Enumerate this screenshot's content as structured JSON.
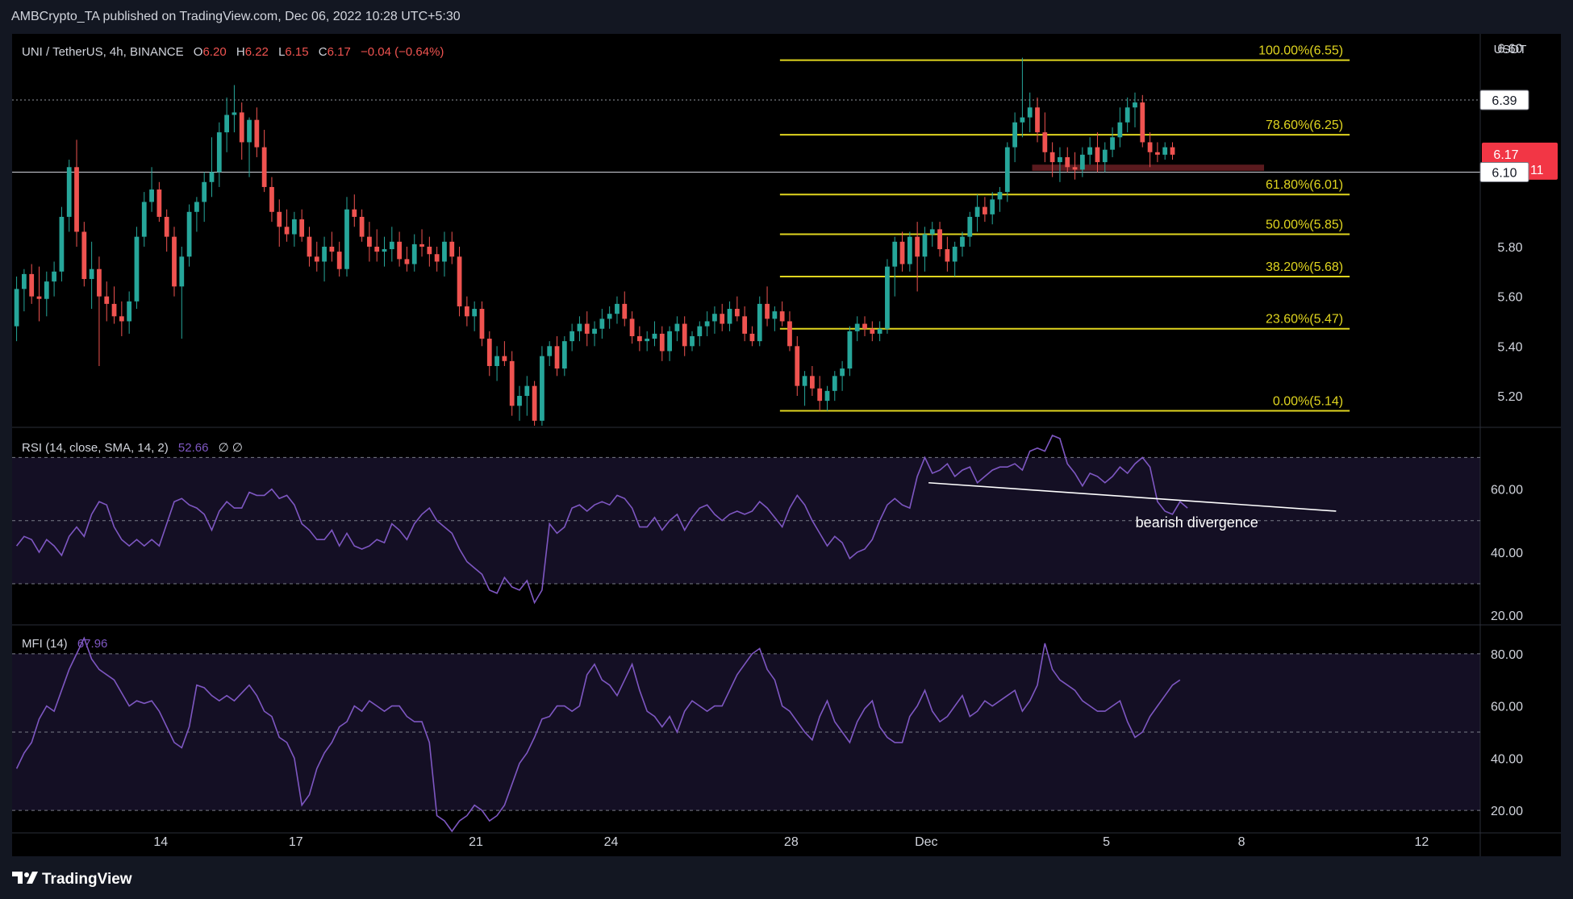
{
  "header": {
    "publisher": "AMBCrypto_TA published on TradingView.com, Dec 06, 2022 10:28 UTC+5:30"
  },
  "footer": {
    "brand": "TradingView"
  },
  "colors": {
    "up": "#26a69a",
    "down": "#ef5350",
    "fib": "#e0d51f",
    "rsi": "#7e57c2",
    "mfi": "#7e57c2",
    "text": "#d1d4dc",
    "bg": "#000000"
  },
  "chart_data": {
    "type": "candlestick",
    "symbol_line": {
      "symbol": "UNI / TetherUS, 4h, BINANCE",
      "o_label": "O",
      "o": "6.20",
      "h_label": "H",
      "h": "6.22",
      "l_label": "L",
      "l": "6.15",
      "c_label": "C",
      "c": "6.17",
      "change": "−0.04 (−0.64%)"
    },
    "y_axis": {
      "unit": "USDT",
      "ticks": [
        5.2,
        5.4,
        5.6,
        5.8,
        6.6
      ],
      "tick_labels": [
        "5.20",
        "5.40",
        "5.60",
        "5.80",
        "6.60"
      ],
      "ylim": [
        5.08,
        6.63
      ]
    },
    "x_axis": {
      "ticks": [
        {
          "label": "14",
          "day": 14
        },
        {
          "label": "17",
          "day": 17
        },
        {
          "label": "21",
          "day": 21
        },
        {
          "label": "24",
          "day": 24
        },
        {
          "label": "28",
          "day": 28
        },
        {
          "label": "Dec",
          "day": 31
        },
        {
          "label": "5",
          "day": 35
        },
        {
          "label": "8",
          "day": 38
        },
        {
          "label": "12",
          "day": 42
        }
      ],
      "xlim": [
        10.7,
        43.3
      ]
    },
    "price_badges": [
      {
        "label": "6.39",
        "value": 6.39,
        "style": "light"
      },
      {
        "label": "6.17",
        "value": 6.17,
        "sub": "03:01:11",
        "style": "red"
      },
      {
        "label": "6.10",
        "value": 6.1,
        "style": "light"
      }
    ],
    "horizontal_lines": [
      {
        "value": 6.39,
        "style": "dotted"
      },
      {
        "value": 6.1,
        "style": "solid"
      }
    ],
    "fibonacci": {
      "start_day": 27.75,
      "end_day": 40.4,
      "levels": [
        {
          "label": "100.00%(6.55)",
          "value": 6.55
        },
        {
          "label": "78.60%(6.25)",
          "value": 6.25
        },
        {
          "label": "61.80%(6.01)",
          "value": 6.01
        },
        {
          "label": "50.00%(5.85)",
          "value": 5.85
        },
        {
          "label": "38.20%(5.68)",
          "value": 5.68
        },
        {
          "label": "23.60%(5.47)",
          "value": 5.47
        },
        {
          "label": "0.00%(5.14)",
          "value": 5.14
        }
      ]
    },
    "zones": [
      {
        "from_day": 33.35,
        "to_day": 38.5,
        "low": 6.105,
        "high": 6.13,
        "color": "#5a1a1e"
      }
    ],
    "candles": [
      [
        5.48,
        5.68,
        5.42,
        5.63
      ],
      [
        5.63,
        5.71,
        5.54,
        5.69
      ],
      [
        5.69,
        5.73,
        5.57,
        5.6
      ],
      [
        5.6,
        5.72,
        5.5,
        5.59
      ],
      [
        5.59,
        5.7,
        5.52,
        5.66
      ],
      [
        5.66,
        5.74,
        5.6,
        5.7
      ],
      [
        5.7,
        5.96,
        5.66,
        5.92
      ],
      [
        5.92,
        6.15,
        5.86,
        6.12
      ],
      [
        6.12,
        6.23,
        5.8,
        5.86
      ],
      [
        5.86,
        5.9,
        5.64,
        5.67
      ],
      [
        5.67,
        5.82,
        5.55,
        5.71
      ],
      [
        5.71,
        5.76,
        5.32,
        5.6
      ],
      [
        5.6,
        5.66,
        5.5,
        5.57
      ],
      [
        5.57,
        5.64,
        5.49,
        5.52
      ],
      [
        5.52,
        5.58,
        5.44,
        5.5
      ],
      [
        5.5,
        5.62,
        5.45,
        5.58
      ],
      [
        5.58,
        5.88,
        5.55,
        5.84
      ],
      [
        5.84,
        6.02,
        5.8,
        5.98
      ],
      [
        5.98,
        6.12,
        5.94,
        6.03
      ],
      [
        6.03,
        6.06,
        5.9,
        5.92
      ],
      [
        5.92,
        5.95,
        5.78,
        5.84
      ],
      [
        5.84,
        5.88,
        5.6,
        5.64
      ],
      [
        5.64,
        5.8,
        5.43,
        5.76
      ],
      [
        5.76,
        5.97,
        5.72,
        5.94
      ],
      [
        5.94,
        6.0,
        5.86,
        5.98
      ],
      [
        5.98,
        6.1,
        5.9,
        6.06
      ],
      [
        6.06,
        6.24,
        6.0,
        6.1
      ],
      [
        6.1,
        6.3,
        6.04,
        6.26
      ],
      [
        6.26,
        6.4,
        6.18,
        6.33
      ],
      [
        6.33,
        6.45,
        6.26,
        6.34
      ],
      [
        6.34,
        6.38,
        6.15,
        6.22
      ],
      [
        6.22,
        6.32,
        6.08,
        6.31
      ],
      [
        6.31,
        6.36,
        6.16,
        6.2
      ],
      [
        6.2,
        6.27,
        6.02,
        6.04
      ],
      [
        6.04,
        6.08,
        5.9,
        5.94
      ],
      [
        5.94,
        5.99,
        5.8,
        5.88
      ],
      [
        5.88,
        5.95,
        5.82,
        5.85
      ],
      [
        5.85,
        5.94,
        5.8,
        5.91
      ],
      [
        5.91,
        5.95,
        5.82,
        5.84
      ],
      [
        5.84,
        5.88,
        5.72,
        5.76
      ],
      [
        5.76,
        5.82,
        5.7,
        5.74
      ],
      [
        5.74,
        5.84,
        5.66,
        5.8
      ],
      [
        5.8,
        5.86,
        5.74,
        5.78
      ],
      [
        5.78,
        5.82,
        5.68,
        5.71
      ],
      [
        5.71,
        6.0,
        5.68,
        5.95
      ],
      [
        5.95,
        6.01,
        5.88,
        5.92
      ],
      [
        5.92,
        5.95,
        5.82,
        5.84
      ],
      [
        5.84,
        5.9,
        5.74,
        5.8
      ],
      [
        5.8,
        5.87,
        5.74,
        5.78
      ],
      [
        5.78,
        5.84,
        5.72,
        5.79
      ],
      [
        5.79,
        5.88,
        5.74,
        5.82
      ],
      [
        5.82,
        5.86,
        5.72,
        5.75
      ],
      [
        5.75,
        5.8,
        5.7,
        5.73
      ],
      [
        5.73,
        5.85,
        5.7,
        5.81
      ],
      [
        5.81,
        5.87,
        5.76,
        5.8
      ],
      [
        5.8,
        5.84,
        5.72,
        5.77
      ],
      [
        5.77,
        5.8,
        5.7,
        5.74
      ],
      [
        5.74,
        5.86,
        5.68,
        5.82
      ],
      [
        5.82,
        5.86,
        5.73,
        5.76
      ],
      [
        5.76,
        5.8,
        5.52,
        5.56
      ],
      [
        5.56,
        5.6,
        5.48,
        5.52
      ],
      [
        5.52,
        5.58,
        5.46,
        5.55
      ],
      [
        5.55,
        5.58,
        5.4,
        5.43
      ],
      [
        5.43,
        5.46,
        5.28,
        5.32
      ],
      [
        5.32,
        5.4,
        5.26,
        5.36
      ],
      [
        5.36,
        5.42,
        5.32,
        5.34
      ],
      [
        5.34,
        5.38,
        5.12,
        5.16
      ],
      [
        5.16,
        5.24,
        5.1,
        5.2
      ],
      [
        5.2,
        5.28,
        5.12,
        5.24
      ],
      [
        5.24,
        5.26,
        5.08,
        5.1
      ],
      [
        5.1,
        5.4,
        5.08,
        5.36
      ],
      [
        5.36,
        5.42,
        5.32,
        5.4
      ],
      [
        5.4,
        5.44,
        5.28,
        5.31
      ],
      [
        5.31,
        5.44,
        5.28,
        5.42
      ],
      [
        5.42,
        5.49,
        5.38,
        5.46
      ],
      [
        5.46,
        5.52,
        5.42,
        5.49
      ],
      [
        5.49,
        5.54,
        5.4,
        5.45
      ],
      [
        5.45,
        5.5,
        5.4,
        5.47
      ],
      [
        5.47,
        5.55,
        5.43,
        5.51
      ],
      [
        5.51,
        5.56,
        5.47,
        5.53
      ],
      [
        5.53,
        5.6,
        5.49,
        5.57
      ],
      [
        5.57,
        5.62,
        5.48,
        5.51
      ],
      [
        5.51,
        5.54,
        5.41,
        5.44
      ],
      [
        5.44,
        5.48,
        5.38,
        5.42
      ],
      [
        5.42,
        5.46,
        5.38,
        5.43
      ],
      [
        5.43,
        5.5,
        5.4,
        5.45
      ],
      [
        5.45,
        5.48,
        5.34,
        5.38
      ],
      [
        5.38,
        5.48,
        5.34,
        5.46
      ],
      [
        5.46,
        5.52,
        5.42,
        5.49
      ],
      [
        5.49,
        5.52,
        5.36,
        5.4
      ],
      [
        5.4,
        5.46,
        5.38,
        5.44
      ],
      [
        5.44,
        5.5,
        5.4,
        5.48
      ],
      [
        5.48,
        5.54,
        5.44,
        5.5
      ],
      [
        5.5,
        5.56,
        5.45,
        5.53
      ],
      [
        5.53,
        5.57,
        5.46,
        5.49
      ],
      [
        5.49,
        5.58,
        5.46,
        5.55
      ],
      [
        5.55,
        5.6,
        5.5,
        5.52
      ],
      [
        5.52,
        5.56,
        5.42,
        5.45
      ],
      [
        5.45,
        5.48,
        5.4,
        5.42
      ],
      [
        5.42,
        5.6,
        5.4,
        5.57
      ],
      [
        5.57,
        5.64,
        5.48,
        5.51
      ],
      [
        5.51,
        5.56,
        5.46,
        5.54
      ],
      [
        5.54,
        5.58,
        5.48,
        5.5
      ],
      [
        5.5,
        5.54,
        5.38,
        5.4
      ],
      [
        5.4,
        5.44,
        5.2,
        5.24
      ],
      [
        5.24,
        5.3,
        5.16,
        5.28
      ],
      [
        5.28,
        5.32,
        5.2,
        5.23
      ],
      [
        5.23,
        5.28,
        5.14,
        5.18
      ],
      [
        5.18,
        5.24,
        5.14,
        5.22
      ],
      [
        5.22,
        5.3,
        5.18,
        5.28
      ],
      [
        5.28,
        5.34,
        5.22,
        5.31
      ],
      [
        5.31,
        5.48,
        5.28,
        5.46
      ],
      [
        5.46,
        5.52,
        5.42,
        5.49
      ],
      [
        5.49,
        5.52,
        5.44,
        5.47
      ],
      [
        5.47,
        5.5,
        5.42,
        5.45
      ],
      [
        5.45,
        5.5,
        5.42,
        5.47
      ],
      [
        5.47,
        5.75,
        5.45,
        5.72
      ],
      [
        5.72,
        5.84,
        5.6,
        5.82
      ],
      [
        5.82,
        5.86,
        5.7,
        5.73
      ],
      [
        5.73,
        5.86,
        5.7,
        5.84
      ],
      [
        5.84,
        5.9,
        5.62,
        5.76
      ],
      [
        5.76,
        5.88,
        5.7,
        5.85
      ],
      [
        5.85,
        5.9,
        5.8,
        5.87
      ],
      [
        5.87,
        5.9,
        5.76,
        5.79
      ],
      [
        5.79,
        5.84,
        5.7,
        5.74
      ],
      [
        5.74,
        5.82,
        5.68,
        5.8
      ],
      [
        5.8,
        5.86,
        5.76,
        5.84
      ],
      [
        5.84,
        5.94,
        5.8,
        5.92
      ],
      [
        5.92,
        6.01,
        5.86,
        5.96
      ],
      [
        5.96,
        6.0,
        5.9,
        5.93
      ],
      [
        5.93,
        6.02,
        5.89,
        5.99
      ],
      [
        5.99,
        6.04,
        5.94,
        6.02
      ],
      [
        6.02,
        6.22,
        5.98,
        6.2
      ],
      [
        6.2,
        6.34,
        6.14,
        6.3
      ],
      [
        6.3,
        6.56,
        6.24,
        6.32
      ],
      [
        6.32,
        6.42,
        6.26,
        6.36
      ],
      [
        6.36,
        6.4,
        6.22,
        6.26
      ],
      [
        6.26,
        6.34,
        6.14,
        6.18
      ],
      [
        6.18,
        6.22,
        6.08,
        6.14
      ],
      [
        6.14,
        6.2,
        6.06,
        6.16
      ],
      [
        6.16,
        6.2,
        6.1,
        6.12
      ],
      [
        6.12,
        6.18,
        6.07,
        6.11
      ],
      [
        6.11,
        6.2,
        6.08,
        6.17
      ],
      [
        6.17,
        6.24,
        6.13,
        6.2
      ],
      [
        6.2,
        6.26,
        6.1,
        6.14
      ],
      [
        6.14,
        6.22,
        6.1,
        6.19
      ],
      [
        6.19,
        6.28,
        6.16,
        6.24
      ],
      [
        6.24,
        6.36,
        6.2,
        6.3
      ],
      [
        6.3,
        6.4,
        6.26,
        6.36
      ],
      [
        6.36,
        6.42,
        6.28,
        6.38
      ],
      [
        6.38,
        6.41,
        6.2,
        6.22
      ],
      [
        6.22,
        6.26,
        6.12,
        6.18
      ],
      [
        6.18,
        6.22,
        6.14,
        6.17
      ],
      [
        6.17,
        6.22,
        6.15,
        6.2
      ],
      [
        6.2,
        6.22,
        6.15,
        6.17
      ]
    ],
    "rsi": {
      "label": "RSI (14, close, SMA, 14, 2)",
      "value": "52.66",
      "extra": "∅ ∅",
      "ticks": [
        20,
        40,
        60
      ],
      "tick_labels": [
        "20.00",
        "40.00",
        "60.00"
      ],
      "ylim": [
        17.5,
        77
      ],
      "bands": [
        30,
        50,
        70
      ],
      "annotation": "bearish divergence",
      "divergence": {
        "from": [
          31.05,
          62
        ],
        "to": [
          40.1,
          53
        ]
      },
      "values": [
        42,
        45,
        44,
        40,
        44,
        42,
        39,
        45,
        48,
        45,
        52,
        56,
        55,
        48,
        44,
        42,
        44,
        42,
        44,
        42,
        49,
        56,
        57,
        55,
        54,
        52,
        47,
        53,
        56,
        54,
        54,
        59,
        58,
        58,
        60,
        57,
        58,
        55,
        49,
        47,
        44,
        44,
        47,
        42,
        46,
        42,
        41,
        42,
        44,
        43,
        49,
        47,
        44,
        49,
        52,
        54,
        50,
        48,
        46,
        41,
        37,
        35,
        33,
        28,
        27,
        32,
        29,
        28,
        31,
        24,
        28,
        49,
        46,
        48,
        54,
        55,
        53,
        55,
        56,
        55,
        58,
        57,
        54,
        48,
        48,
        51,
        47,
        50,
        52,
        47,
        51,
        54,
        55,
        52,
        50,
        52,
        53,
        52,
        53,
        56,
        54,
        51,
        48,
        54,
        58,
        55,
        50,
        46,
        42,
        45,
        43,
        38,
        40,
        41,
        44,
        50,
        55,
        57,
        55,
        54,
        64,
        70,
        65,
        66,
        68,
        64,
        66,
        67,
        62,
        64,
        66,
        67,
        67,
        68,
        66,
        72,
        73,
        72,
        77,
        76,
        68,
        65,
        61,
        65,
        64,
        62,
        64,
        67,
        65,
        68,
        70,
        67,
        56,
        53,
        52,
        56,
        54
      ]
    },
    "mfi": {
      "label": "MFI (14)",
      "value": "67.96",
      "ticks": [
        20,
        40,
        60,
        80
      ],
      "tick_labels": [
        "20.00",
        "40.00",
        "60.00",
        "80.00"
      ],
      "ylim": [
        12,
        88
      ],
      "bands": [
        20,
        50,
        80
      ],
      "values": [
        36,
        42,
        46,
        55,
        60,
        58,
        66,
        74,
        80,
        86,
        78,
        74,
        72,
        70,
        65,
        60,
        62,
        61,
        62,
        58,
        52,
        46,
        44,
        52,
        68,
        67,
        64,
        62,
        64,
        62,
        65,
        68,
        64,
        58,
        56,
        48,
        46,
        40,
        22,
        26,
        36,
        42,
        46,
        52,
        54,
        60,
        58,
        62,
        60,
        58,
        60,
        60,
        56,
        54,
        54,
        46,
        18,
        16,
        12,
        16,
        18,
        22,
        20,
        16,
        18,
        22,
        30,
        38,
        42,
        48,
        55,
        56,
        60,
        60,
        58,
        60,
        72,
        76,
        70,
        68,
        64,
        70,
        76,
        66,
        58,
        56,
        52,
        56,
        50,
        58,
        62,
        60,
        58,
        60,
        60,
        66,
        72,
        76,
        80,
        82,
        74,
        70,
        60,
        58,
        54,
        50,
        47,
        56,
        62,
        54,
        50,
        46,
        54,
        59,
        62,
        52,
        48,
        46,
        46,
        56,
        60,
        66,
        58,
        54,
        56,
        60,
        64,
        56,
        58,
        62,
        60,
        62,
        64,
        66,
        58,
        62,
        68,
        84,
        74,
        70,
        68,
        66,
        62,
        60,
        58,
        58,
        60,
        62,
        54,
        48,
        50,
        56,
        60,
        64,
        68,
        70
      ]
    }
  }
}
